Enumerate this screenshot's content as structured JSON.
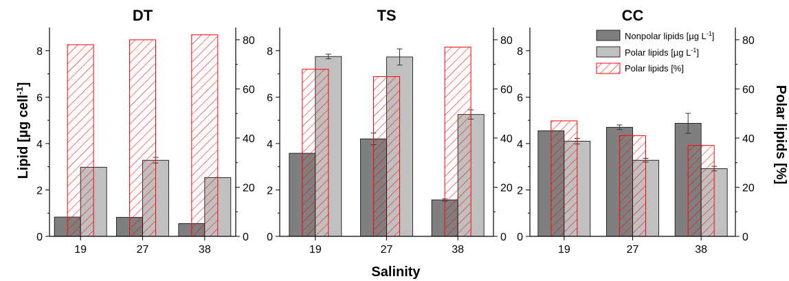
{
  "figure": {
    "xlabel": "Salinity",
    "ylabel_left": "Lipid [µg cell",
    "ylabel_left_sup": "-1",
    "ylabel_left_end": "]",
    "ylabel_right": "Polar lipids [%]"
  },
  "legend": {
    "items": [
      {
        "label": "Nonpolar lipids [µg L",
        "sup": "-1",
        "end": "]",
        "kind": "nonpolar"
      },
      {
        "label": "Polar lipids [µg L",
        "sup": "-1",
        "end": "]",
        "kind": "polar"
      },
      {
        "label": "Polar lipids [%]",
        "kind": "percent"
      }
    ]
  },
  "colors": {
    "nonpolar": "#7f7f7f",
    "polar": "#c0c0c0",
    "percent": "#ff0000"
  },
  "chart_data": [
    {
      "type": "bar",
      "title": "DT",
      "categories": [
        "19",
        "27",
        "38"
      ],
      "ylim": [
        0,
        9
      ],
      "yticks": [
        0,
        2,
        4,
        6,
        8
      ],
      "y2lim": [
        0,
        85
      ],
      "y2ticks": [
        0,
        20,
        40,
        60,
        80
      ],
      "series": [
        {
          "name": "Nonpolar lipids [µg L-1]",
          "axis": "left",
          "values": [
            0.83,
            0.82,
            0.55
          ],
          "errors": [
            0,
            0,
            0
          ]
        },
        {
          "name": "Polar lipids [µg L-1]",
          "axis": "left",
          "values": [
            2.98,
            3.28,
            2.53
          ],
          "errors": [
            0,
            0.12,
            0
          ]
        },
        {
          "name": "Polar lipids [%]",
          "axis": "right",
          "values": [
            78,
            80,
            82
          ],
          "errors": [
            0,
            0,
            0
          ]
        }
      ]
    },
    {
      "type": "bar",
      "title": "TS",
      "categories": [
        "19",
        "27",
        "38"
      ],
      "ylim": [
        0,
        9
      ],
      "yticks": [
        0,
        2,
        4,
        6,
        8
      ],
      "y2lim": [
        0,
        85
      ],
      "y2ticks": [
        0,
        20,
        40,
        60,
        80
      ],
      "series": [
        {
          "name": "Nonpolar lipids [µg L-1]",
          "axis": "left",
          "values": [
            3.58,
            4.2,
            1.57
          ],
          "errors": [
            0,
            0.25,
            0.05
          ]
        },
        {
          "name": "Polar lipids [µg L-1]",
          "axis": "left",
          "values": [
            7.75,
            7.73,
            5.25
          ],
          "errors": [
            0.1,
            0.35,
            0.2
          ]
        },
        {
          "name": "Polar lipids [%]",
          "axis": "right",
          "values": [
            68,
            65,
            77
          ],
          "errors": [
            0,
            0,
            0
          ]
        }
      ]
    },
    {
      "type": "bar",
      "title": "CC",
      "categories": [
        "19",
        "27",
        "38"
      ],
      "ylim": [
        0,
        9
      ],
      "yticks": [
        0,
        2,
        4,
        6,
        8
      ],
      "y2lim": [
        0,
        85
      ],
      "y2ticks": [
        0,
        20,
        40,
        60,
        80
      ],
      "legend": "top-right",
      "series": [
        {
          "name": "Nonpolar lipids [µg L-1]",
          "axis": "left",
          "values": [
            4.55,
            4.7,
            4.87
          ],
          "errors": [
            0,
            0.1,
            0.43
          ]
        },
        {
          "name": "Polar lipids [µg L-1]",
          "axis": "left",
          "values": [
            4.1,
            3.28,
            2.92
          ],
          "errors": [
            0.12,
            0.08,
            0.1
          ]
        },
        {
          "name": "Polar lipids [%]",
          "axis": "right",
          "values": [
            47,
            41,
            37
          ],
          "errors": [
            0,
            0,
            0
          ]
        }
      ]
    }
  ]
}
